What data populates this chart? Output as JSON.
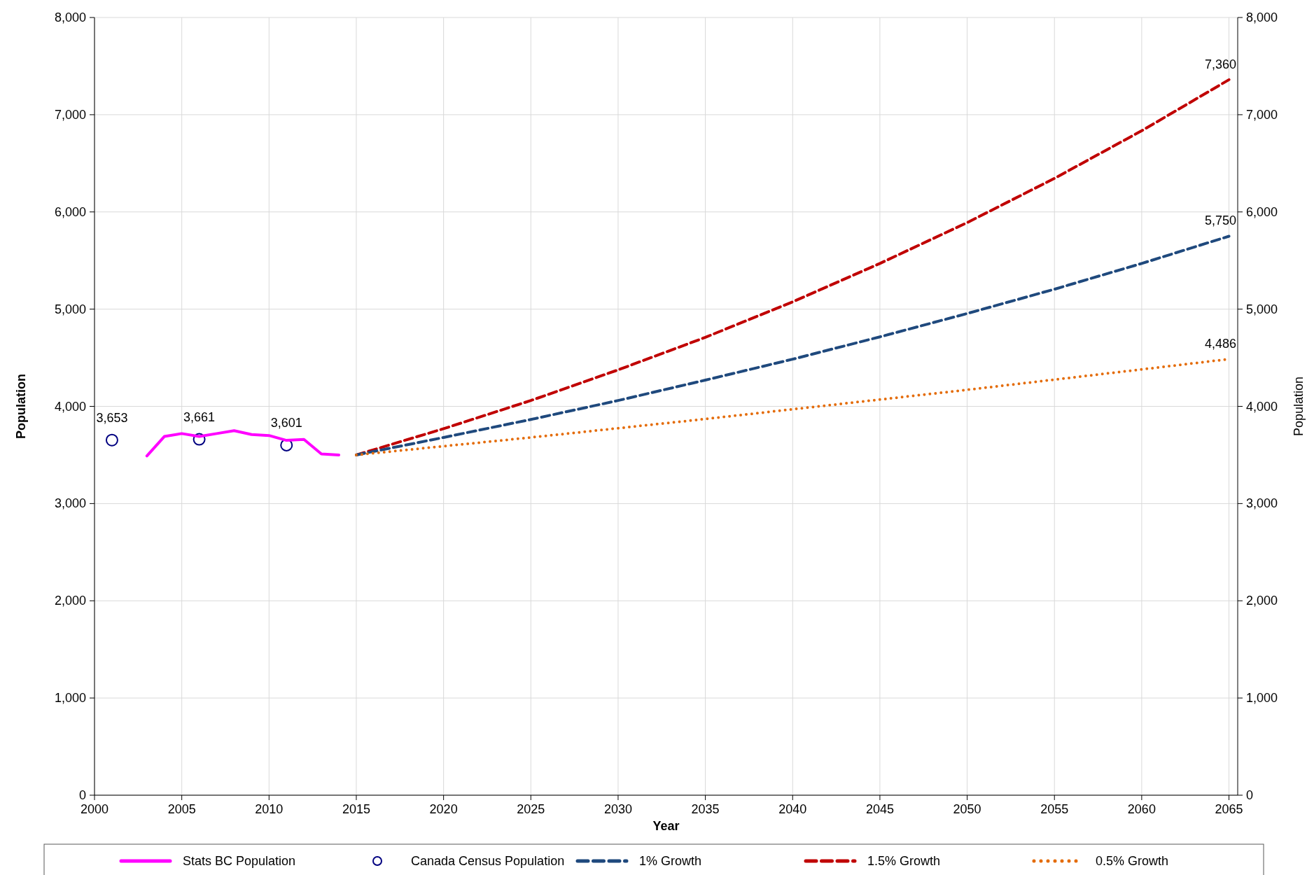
{
  "chart_data": {
    "type": "line",
    "xlabel": "Year",
    "ylabel": "Population",
    "y2label": "Population",
    "xlim": [
      2000,
      2065.5
    ],
    "xticks": [
      2000,
      2005,
      2010,
      2015,
      2020,
      2025,
      2030,
      2035,
      2040,
      2045,
      2050,
      2055,
      2060,
      2065
    ],
    "ylim": [
      0,
      8000
    ],
    "yticks": [
      {
        "value": 0,
        "label": "0"
      },
      {
        "value": 1000,
        "label": "1,000"
      },
      {
        "value": 2000,
        "label": "2,000"
      },
      {
        "value": 3000,
        "label": "3,000"
      },
      {
        "value": 4000,
        "label": "4,000"
      },
      {
        "value": 5000,
        "label": "5,000"
      },
      {
        "value": 6000,
        "label": "6,000"
      },
      {
        "value": 7000,
        "label": "7,000"
      },
      {
        "value": 8000,
        "label": "8,000"
      }
    ],
    "y2lim": [
      0,
      8000
    ],
    "y2ticks": [
      {
        "value": 0,
        "label": "0"
      },
      {
        "value": 1000,
        "label": "1,000"
      },
      {
        "value": 2000,
        "label": "2,000"
      },
      {
        "value": 3000,
        "label": "3,000"
      },
      {
        "value": 4000,
        "label": "4,000"
      },
      {
        "value": 5000,
        "label": "5,000"
      },
      {
        "value": 6000,
        "label": "6,000"
      },
      {
        "value": 7000,
        "label": "7,000"
      },
      {
        "value": 8000,
        "label": "8,000"
      }
    ],
    "grid": true,
    "legend": "bottom",
    "series": [
      {
        "name": "Stats BC Population",
        "color": "#ff00ff",
        "line_style": "solid",
        "marker": "none",
        "x": [
          2003,
          2004,
          2005,
          2006,
          2007,
          2008,
          2009,
          2010,
          2011,
          2012,
          2013,
          2014
        ],
        "values": [
          3490,
          3690,
          3720,
          3690,
          3720,
          3750,
          3710,
          3700,
          3650,
          3660,
          3510,
          3500
        ]
      },
      {
        "name": "Canada Census Population",
        "type": "scatter",
        "color": "#000080",
        "marker": "circle",
        "x": [
          2001,
          2006,
          2011
        ],
        "values": [
          3653,
          3661,
          3601
        ],
        "value_labels": [
          "3,653",
          "3,661",
          "3,601"
        ]
      },
      {
        "name": "1% Growth",
        "color": "#1f497d",
        "line_style": "dashed",
        "marker": "none",
        "x": [
          2015,
          2020,
          2025,
          2030,
          2035,
          2040,
          2045,
          2050,
          2055,
          2060,
          2065
        ],
        "values": [
          3500,
          3680,
          3865,
          4060,
          4270,
          4485,
          4715,
          4955,
          5205,
          5470,
          5750
        ],
        "value_labels": [
          null,
          null,
          null,
          null,
          null,
          null,
          null,
          null,
          null,
          null,
          "5,750"
        ]
      },
      {
        "name": "1.5% Growth",
        "color": "#c00000",
        "line_style": "dashed",
        "marker": "none",
        "x": [
          2015,
          2020,
          2025,
          2030,
          2035,
          2040,
          2045,
          2050,
          2055,
          2060,
          2065
        ],
        "values": [
          3500,
          3770,
          4060,
          4375,
          4710,
          5075,
          5470,
          5890,
          6345,
          6835,
          7360
        ],
        "value_labels": [
          null,
          null,
          null,
          null,
          null,
          null,
          null,
          null,
          null,
          null,
          "7,360"
        ]
      },
      {
        "name": "0.5% Growth",
        "color": "#e46c0a",
        "line_style": "dotted",
        "marker": "none",
        "x": [
          2015,
          2020,
          2025,
          2030,
          2035,
          2040,
          2045,
          2050,
          2055,
          2060,
          2065
        ],
        "values": [
          3500,
          3590,
          3680,
          3775,
          3870,
          3970,
          4070,
          4170,
          4275,
          4380,
          4486
        ],
        "value_labels": [
          null,
          null,
          null,
          null,
          null,
          null,
          null,
          null,
          null,
          null,
          "4,486"
        ]
      }
    ]
  }
}
